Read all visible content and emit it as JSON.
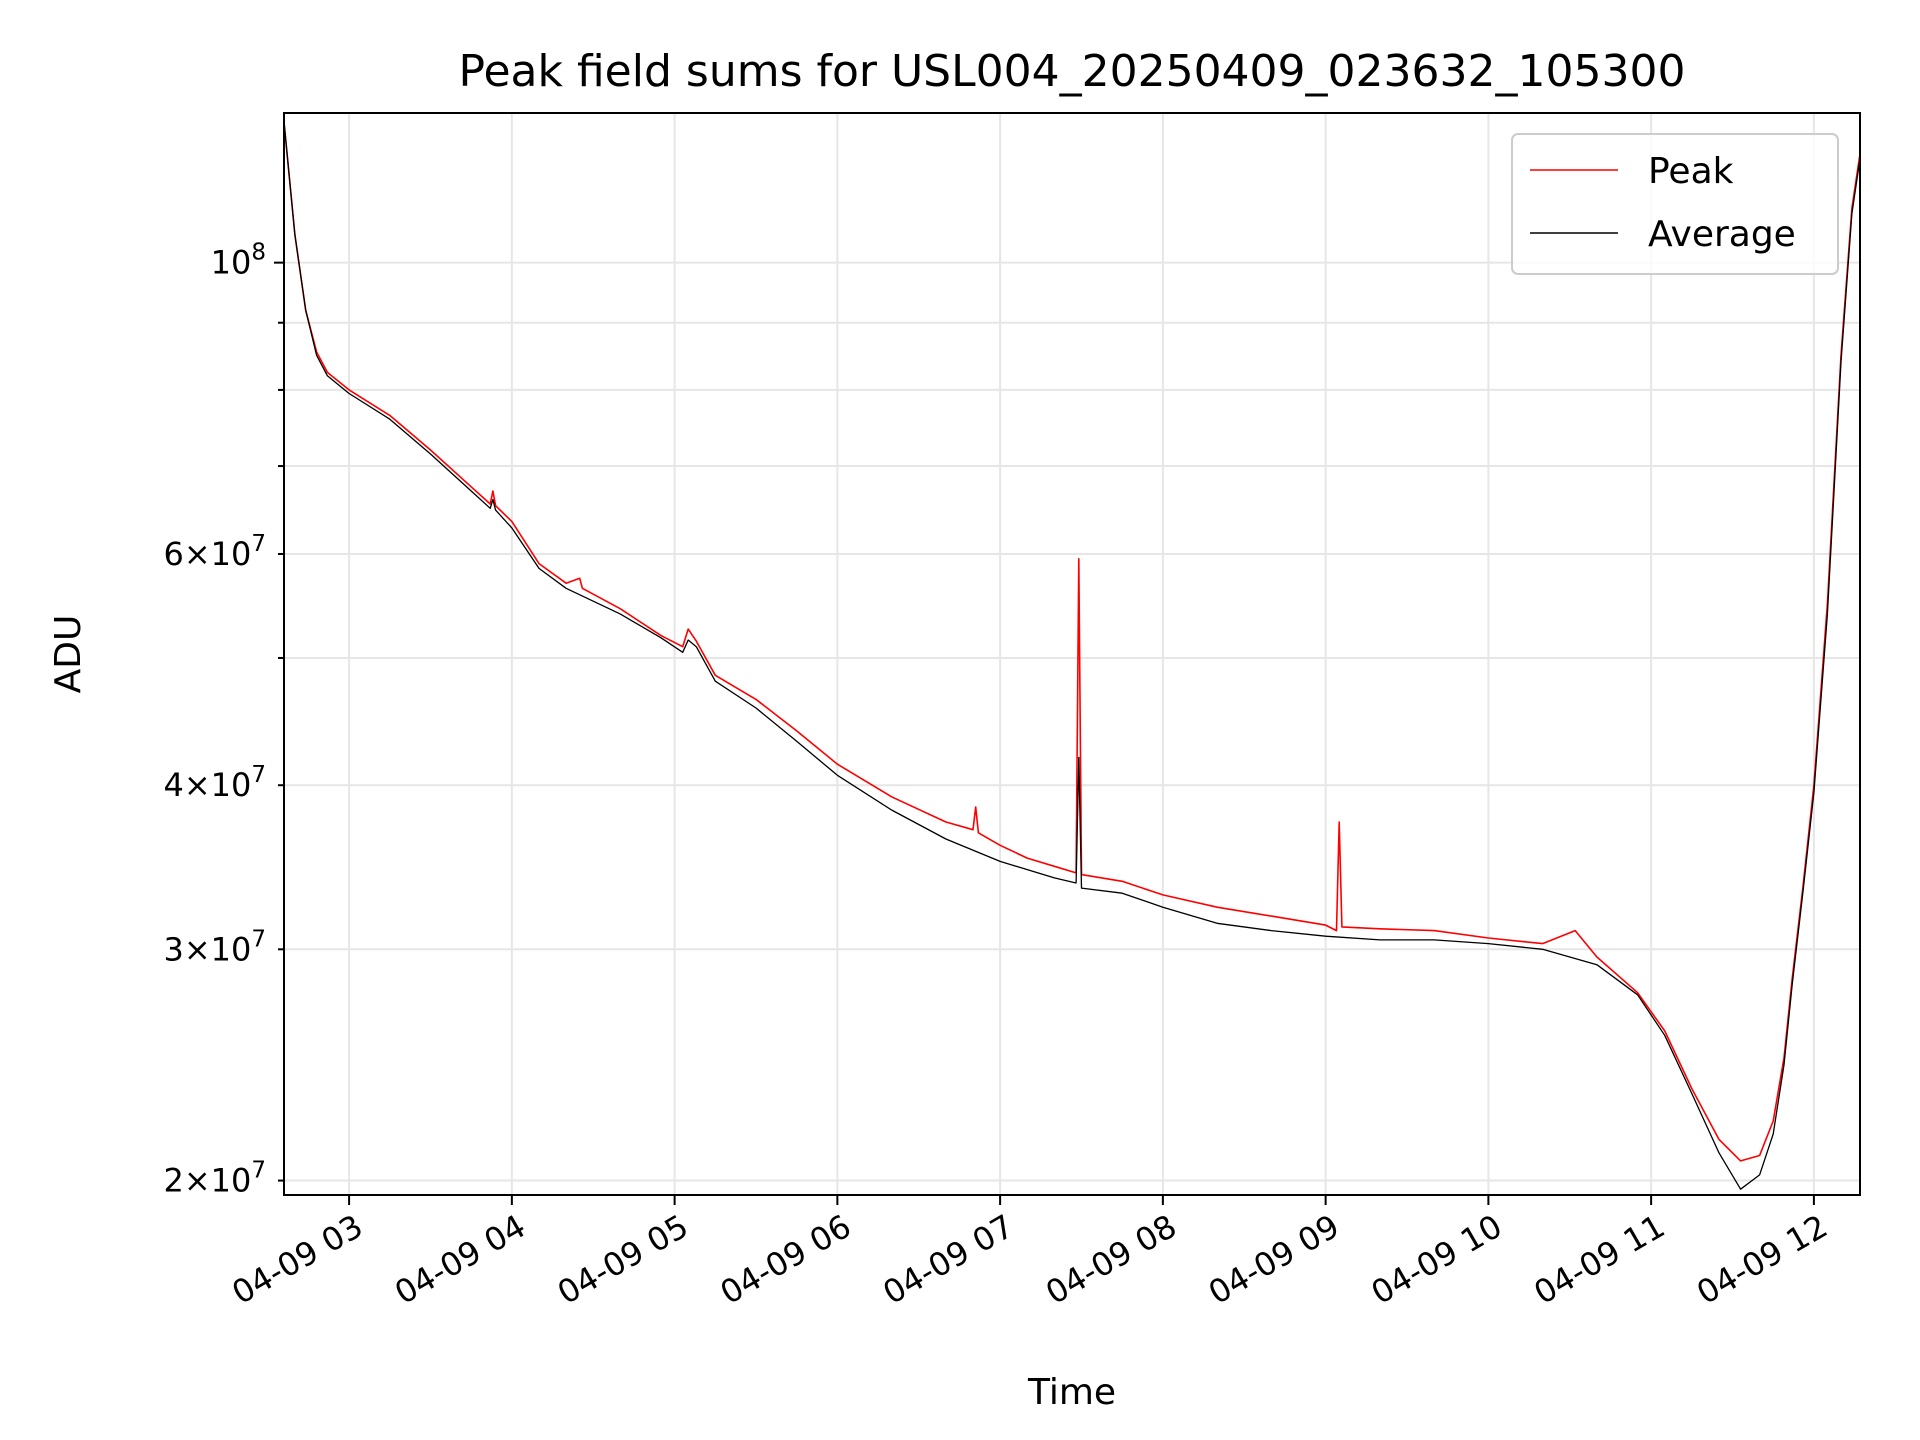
{
  "chart_data": {
    "type": "line",
    "title": "Peak field sums for USL004_20250409_023632_105300",
    "xlabel": "Time",
    "ylabel": "ADU",
    "yscale": "log",
    "grid": true,
    "legend": "top-right",
    "xlim": [
      "04-09 02:36",
      "04-09 12:17"
    ],
    "ylim": [
      19500000,
      130000000
    ],
    "x_ticks": [
      {
        "t": "04-09 03:00",
        "label": "04-09 03"
      },
      {
        "t": "04-09 04:00",
        "label": "04-09 04"
      },
      {
        "t": "04-09 05:00",
        "label": "04-09 05"
      },
      {
        "t": "04-09 06:00",
        "label": "04-09 06"
      },
      {
        "t": "04-09 07:00",
        "label": "04-09 07"
      },
      {
        "t": "04-09 08:00",
        "label": "04-09 08"
      },
      {
        "t": "04-09 09:00",
        "label": "04-09 09"
      },
      {
        "t": "04-09 10:00",
        "label": "04-09 10"
      },
      {
        "t": "04-09 11:00",
        "label": "04-09 11"
      },
      {
        "t": "04-09 12:00",
        "label": "04-09 12"
      }
    ],
    "y_ticks_major": [
      {
        "value": 100000000,
        "base": "10",
        "exp": "8"
      }
    ],
    "y_ticks_minor": [
      {
        "value": 20000000,
        "coef": "2",
        "base": "10",
        "exp": "7"
      },
      {
        "value": 30000000,
        "coef": "3",
        "base": "10",
        "exp": "7"
      },
      {
        "value": 40000000,
        "coef": "4",
        "base": "10",
        "exp": "7"
      },
      {
        "value": 50000000
      },
      {
        "value": 60000000,
        "coef": "6",
        "base": "10",
        "exp": "7"
      },
      {
        "value": 70000000
      },
      {
        "value": 80000000
      },
      {
        "value": 90000000
      }
    ],
    "series": [
      {
        "name": "Peak",
        "color": "#ff0000",
        "points": [
          [
            "04-09 02:36",
            128000000
          ],
          [
            "04-09 02:40",
            105000000
          ],
          [
            "04-09 02:44",
            92000000
          ],
          [
            "04-09 02:48",
            85500000
          ],
          [
            "04-09 02:52",
            82500000
          ],
          [
            "04-09 03:00",
            80000000
          ],
          [
            "04-09 03:15",
            76500000
          ],
          [
            "04-09 03:30",
            72000000
          ],
          [
            "04-09 03:45",
            67500000
          ],
          [
            "04-09 03:52",
            65500000
          ],
          [
            "04-09 03:53",
            67000000
          ],
          [
            "04-09 03:54",
            65300000
          ],
          [
            "04-09 04:00",
            63500000
          ],
          [
            "04-09 04:10",
            59000000
          ],
          [
            "04-09 04:20",
            57000000
          ],
          [
            "04-09 04:25",
            57500000
          ],
          [
            "04-09 04:26",
            56500000
          ],
          [
            "04-09 04:40",
            54500000
          ],
          [
            "04-09 04:55",
            52000000
          ],
          [
            "04-09 05:03",
            51000000
          ],
          [
            "04-09 05:05",
            52600000
          ],
          [
            "04-09 05:08",
            51500000
          ],
          [
            "04-09 05:15",
            48500000
          ],
          [
            "04-09 05:30",
            46500000
          ],
          [
            "04-09 05:45",
            44000000
          ],
          [
            "04-09 06:00",
            41500000
          ],
          [
            "04-09 06:20",
            39200000
          ],
          [
            "04-09 06:40",
            37500000
          ],
          [
            "04-09 06:50",
            37000000
          ],
          [
            "04-09 06:51",
            38500000
          ],
          [
            "04-09 06:52",
            36800000
          ],
          [
            "04-09 07:00",
            36000000
          ],
          [
            "04-09 07:10",
            35200000
          ],
          [
            "04-09 07:20",
            34700000
          ],
          [
            "04-09 07:28",
            34300000
          ],
          [
            "04-09 07:29",
            59500000
          ],
          [
            "04-09 07:30",
            34200000
          ],
          [
            "04-09 07:45",
            33800000
          ],
          [
            "04-09 08:00",
            33000000
          ],
          [
            "04-09 08:20",
            32300000
          ],
          [
            "04-09 08:40",
            31800000
          ],
          [
            "04-09 09:00",
            31300000
          ],
          [
            "04-09 09:04",
            31000000
          ],
          [
            "04-09 09:05",
            37500000
          ],
          [
            "04-09 09:06",
            31200000
          ],
          [
            "04-09 09:20",
            31100000
          ],
          [
            "04-09 09:40",
            31000000
          ],
          [
            "04-09 10:00",
            30600000
          ],
          [
            "04-09 10:20",
            30300000
          ],
          [
            "04-09 10:32",
            31000000
          ],
          [
            "04-09 10:40",
            29600000
          ],
          [
            "04-09 10:55",
            27800000
          ],
          [
            "04-09 11:05",
            26000000
          ],
          [
            "04-09 11:15",
            23500000
          ],
          [
            "04-09 11:25",
            21500000
          ],
          [
            "04-09 11:33",
            20700000
          ],
          [
            "04-09 11:40",
            20900000
          ],
          [
            "04-09 11:45",
            22200000
          ],
          [
            "04-09 11:49",
            24800000
          ],
          [
            "04-09 11:52",
            28500000
          ],
          [
            "04-09 11:56",
            33500000
          ],
          [
            "04-09 12:00",
            40000000
          ],
          [
            "04-09 12:05",
            55000000
          ],
          [
            "04-09 12:10",
            85000000
          ],
          [
            "04-09 12:14",
            110000000
          ],
          [
            "04-09 12:17",
            121000000
          ]
        ]
      },
      {
        "name": "Average",
        "color": "#000000",
        "points": [
          [
            "04-09 02:36",
            128000000
          ],
          [
            "04-09 02:40",
            105000000
          ],
          [
            "04-09 02:44",
            92000000
          ],
          [
            "04-09 02:48",
            85000000
          ],
          [
            "04-09 02:52",
            82000000
          ],
          [
            "04-09 03:00",
            79500000
          ],
          [
            "04-09 03:15",
            76000000
          ],
          [
            "04-09 03:30",
            71500000
          ],
          [
            "04-09 03:45",
            67000000
          ],
          [
            "04-09 03:52",
            65000000
          ],
          [
            "04-09 03:53",
            66000000
          ],
          [
            "04-09 03:54",
            64800000
          ],
          [
            "04-09 04:00",
            62800000
          ],
          [
            "04-09 04:10",
            58500000
          ],
          [
            "04-09 04:20",
            56500000
          ],
          [
            "04-09 04:40",
            54000000
          ],
          [
            "04-09 04:55",
            51800000
          ],
          [
            "04-09 05:03",
            50500000
          ],
          [
            "04-09 05:05",
            51600000
          ],
          [
            "04-09 05:08",
            51000000
          ],
          [
            "04-09 05:15",
            48000000
          ],
          [
            "04-09 05:30",
            45800000
          ],
          [
            "04-09 05:45",
            43200000
          ],
          [
            "04-09 06:00",
            40700000
          ],
          [
            "04-09 06:20",
            38300000
          ],
          [
            "04-09 06:40",
            36400000
          ],
          [
            "04-09 07:00",
            35000000
          ],
          [
            "04-09 07:20",
            34000000
          ],
          [
            "04-09 07:28",
            33700000
          ],
          [
            "04-09 07:29",
            42000000
          ],
          [
            "04-09 07:30",
            33400000
          ],
          [
            "04-09 07:45",
            33100000
          ],
          [
            "04-09 08:00",
            32300000
          ],
          [
            "04-09 08:20",
            31400000
          ],
          [
            "04-09 08:40",
            31000000
          ],
          [
            "04-09 09:00",
            30700000
          ],
          [
            "04-09 09:20",
            30500000
          ],
          [
            "04-09 09:40",
            30500000
          ],
          [
            "04-09 10:00",
            30300000
          ],
          [
            "04-09 10:20",
            30000000
          ],
          [
            "04-09 10:40",
            29200000
          ],
          [
            "04-09 10:55",
            27700000
          ],
          [
            "04-09 11:05",
            25800000
          ],
          [
            "04-09 11:15",
            23300000
          ],
          [
            "04-09 11:25",
            21000000
          ],
          [
            "04-09 11:33",
            19700000
          ],
          [
            "04-09 11:40",
            20200000
          ],
          [
            "04-09 11:45",
            21700000
          ],
          [
            "04-09 11:49",
            24500000
          ],
          [
            "04-09 11:52",
            28200000
          ],
          [
            "04-09 11:56",
            33200000
          ],
          [
            "04-09 12:00",
            39500000
          ],
          [
            "04-09 12:05",
            54000000
          ],
          [
            "04-09 12:10",
            84000000
          ],
          [
            "04-09 12:14",
            109000000
          ],
          [
            "04-09 12:17",
            120000000
          ]
        ]
      }
    ]
  }
}
